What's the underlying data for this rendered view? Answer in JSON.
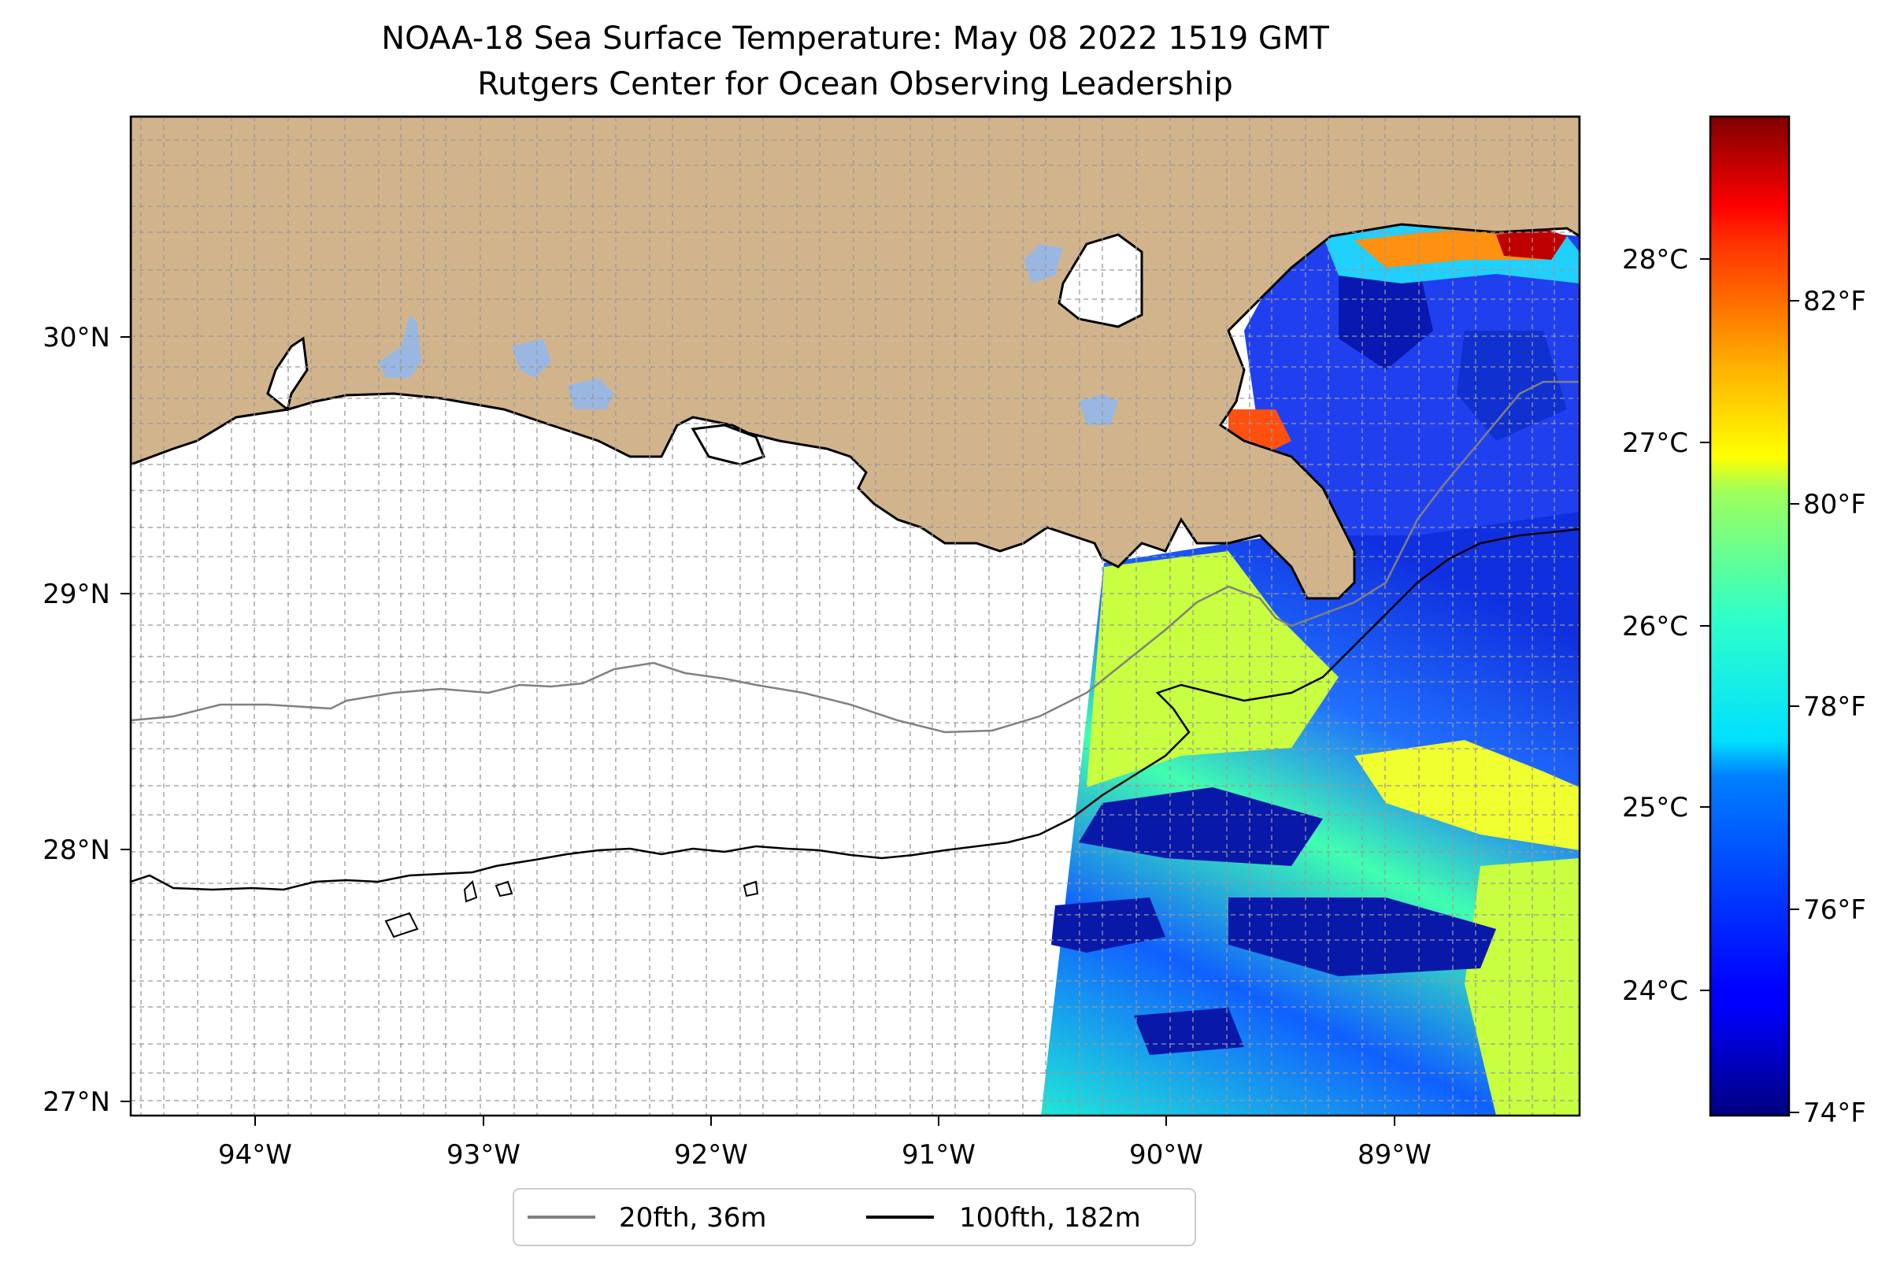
{
  "title": {
    "line1": "NOAA-18 Sea Surface Temperature: May 08 2022 1519 GMT",
    "line2": "Rutgers Center for Ocean Observing Leadership"
  },
  "map": {
    "lon_range": [
      -94.55,
      -88.15
    ],
    "lat_range": [
      26.93,
      30.86
    ],
    "x_ticks": [
      {
        "value": -94,
        "label": "94°W"
      },
      {
        "value": -93,
        "label": "93°W"
      },
      {
        "value": -92,
        "label": "92°W"
      },
      {
        "value": -91,
        "label": "91°W"
      },
      {
        "value": -90,
        "label": "90°W"
      },
      {
        "value": -89,
        "label": "89°W"
      }
    ],
    "y_ticks": [
      {
        "value": 27,
        "label": "27°N"
      },
      {
        "value": 28,
        "label": "28°N"
      },
      {
        "value": 29,
        "label": "29°N"
      },
      {
        "value": 30,
        "label": "30°N"
      }
    ],
    "grid": true,
    "colors": {
      "land": "#d2b48c",
      "lakes": "#9ab7e2",
      "coast": "#000000",
      "isobath_20": "#808080",
      "isobath_100": "#000000"
    }
  },
  "legend": {
    "placement": "bottom-center",
    "items": [
      {
        "label": "20fth, 36m",
        "color": "#808080"
      },
      {
        "label": "100fth, 182m",
        "color": "#000000"
      }
    ]
  },
  "colorbar": {
    "colormap": "jet",
    "range_f": [
      73.9,
      84.0
    ],
    "celsius_ticks": [
      {
        "value": 24,
        "label": "24°C"
      },
      {
        "value": 25,
        "label": "25°C"
      },
      {
        "value": 26,
        "label": "26°C"
      },
      {
        "value": 27,
        "label": "27°C"
      },
      {
        "value": 28,
        "label": "28°C"
      }
    ],
    "fahrenheit_ticks": [
      {
        "value": 74,
        "label": "74°F"
      },
      {
        "value": 76,
        "label": "76°F"
      },
      {
        "value": 78,
        "label": "78°F"
      },
      {
        "value": 80,
        "label": "80°F"
      },
      {
        "value": 82,
        "label": "82°F"
      }
    ]
  }
}
